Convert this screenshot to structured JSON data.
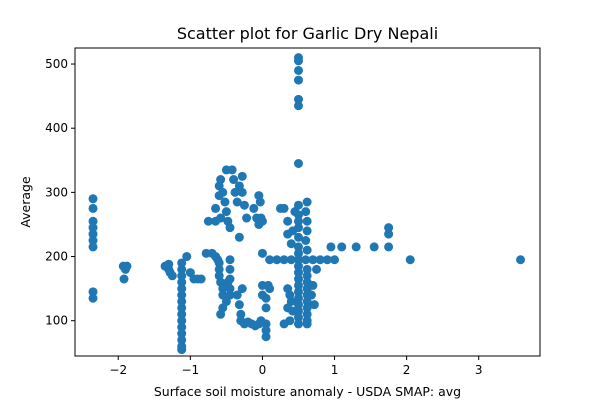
{
  "chart_data": {
    "type": "scatter",
    "title": "Scatter plot for Garlic Dry Nepali",
    "xlabel": "Surface soil moisture anomaly  - USDA SMAP: avg",
    "ylabel": "Average",
    "xlim": [
      -2.6,
      3.85
    ],
    "ylim": [
      45,
      525
    ],
    "xticks": [
      -2,
      -1,
      0,
      1,
      2,
      3
    ],
    "yticks": [
      100,
      200,
      300,
      400,
      500
    ],
    "xtick_labels": [
      "−2",
      "−1",
      "0",
      "1",
      "2",
      "3"
    ],
    "ytick_labels": [
      "100",
      "200",
      "300",
      "400",
      "500"
    ],
    "grid": false,
    "legend": "none",
    "marker_color": "#1f77b4",
    "points": [
      {
        "x": -2.35,
        "y": 290
      },
      {
        "x": -2.35,
        "y": 275
      },
      {
        "x": -2.35,
        "y": 255
      },
      {
        "x": -2.35,
        "y": 245
      },
      {
        "x": -2.35,
        "y": 235
      },
      {
        "x": -2.35,
        "y": 225
      },
      {
        "x": -2.35,
        "y": 215
      },
      {
        "x": -2.35,
        "y": 145
      },
      {
        "x": -2.35,
        "y": 135
      },
      {
        "x": -1.93,
        "y": 185
      },
      {
        "x": -1.9,
        "y": 180
      },
      {
        "x": -1.92,
        "y": 165
      },
      {
        "x": -1.88,
        "y": 185
      },
      {
        "x": -1.35,
        "y": 185
      },
      {
        "x": -1.3,
        "y": 180
      },
      {
        "x": -1.28,
        "y": 175
      },
      {
        "x": -1.25,
        "y": 170
      },
      {
        "x": -1.3,
        "y": 188
      },
      {
        "x": -1.12,
        "y": 190
      },
      {
        "x": -1.12,
        "y": 180
      },
      {
        "x": -1.12,
        "y": 170
      },
      {
        "x": -1.12,
        "y": 160
      },
      {
        "x": -1.12,
        "y": 150
      },
      {
        "x": -1.12,
        "y": 140
      },
      {
        "x": -1.12,
        "y": 130
      },
      {
        "x": -1.12,
        "y": 120
      },
      {
        "x": -1.12,
        "y": 110
      },
      {
        "x": -1.12,
        "y": 100
      },
      {
        "x": -1.12,
        "y": 90
      },
      {
        "x": -1.12,
        "y": 80
      },
      {
        "x": -1.12,
        "y": 70
      },
      {
        "x": -1.12,
        "y": 60
      },
      {
        "x": -1.12,
        "y": 55
      },
      {
        "x": -1.05,
        "y": 200
      },
      {
        "x": -1.0,
        "y": 175
      },
      {
        "x": -0.95,
        "y": 165
      },
      {
        "x": -0.9,
        "y": 165
      },
      {
        "x": -0.85,
        "y": 165
      },
      {
        "x": -0.78,
        "y": 205
      },
      {
        "x": -0.7,
        "y": 205
      },
      {
        "x": -0.65,
        "y": 200
      },
      {
        "x": -0.62,
        "y": 195
      },
      {
        "x": -0.6,
        "y": 190
      },
      {
        "x": -0.6,
        "y": 180
      },
      {
        "x": -0.6,
        "y": 170
      },
      {
        "x": -0.58,
        "y": 160
      },
      {
        "x": -0.55,
        "y": 150
      },
      {
        "x": -0.55,
        "y": 140
      },
      {
        "x": -0.5,
        "y": 130
      },
      {
        "x": -0.55,
        "y": 120
      },
      {
        "x": -0.58,
        "y": 110
      },
      {
        "x": -0.75,
        "y": 255
      },
      {
        "x": -0.65,
        "y": 275
      },
      {
        "x": -0.6,
        "y": 295
      },
      {
        "x": -0.6,
        "y": 310
      },
      {
        "x": -0.58,
        "y": 320
      },
      {
        "x": -0.55,
        "y": 300
      },
      {
        "x": -0.52,
        "y": 285
      },
      {
        "x": -0.5,
        "y": 270
      },
      {
        "x": -0.48,
        "y": 255
      },
      {
        "x": -0.5,
        "y": 335
      },
      {
        "x": -0.42,
        "y": 335
      },
      {
        "x": -0.4,
        "y": 320
      },
      {
        "x": -0.38,
        "y": 300
      },
      {
        "x": -0.35,
        "y": 285
      },
      {
        "x": -0.32,
        "y": 310
      },
      {
        "x": -0.28,
        "y": 325
      },
      {
        "x": -0.28,
        "y": 300
      },
      {
        "x": -0.25,
        "y": 280
      },
      {
        "x": -0.22,
        "y": 260
      },
      {
        "x": -0.65,
        "y": 255
      },
      {
        "x": -0.58,
        "y": 260
      },
      {
        "x": -0.45,
        "y": 245
      },
      {
        "x": -0.32,
        "y": 230
      },
      {
        "x": -0.45,
        "y": 195
      },
      {
        "x": -0.45,
        "y": 180
      },
      {
        "x": -0.45,
        "y": 165
      },
      {
        "x": -0.45,
        "y": 150
      },
      {
        "x": -0.45,
        "y": 140
      },
      {
        "x": -0.48,
        "y": 160
      },
      {
        "x": -0.35,
        "y": 140
      },
      {
        "x": -0.32,
        "y": 125
      },
      {
        "x": -0.3,
        "y": 110
      },
      {
        "x": -0.3,
        "y": 100
      },
      {
        "x": -0.25,
        "y": 95
      },
      {
        "x": -0.2,
        "y": 98
      },
      {
        "x": -0.15,
        "y": 95
      },
      {
        "x": -0.1,
        "y": 92
      },
      {
        "x": -0.05,
        "y": 95
      },
      {
        "x": -0.02,
        "y": 100
      },
      {
        "x": 0.05,
        "y": 95
      },
      {
        "x": 0.05,
        "y": 85
      },
      {
        "x": 0.05,
        "y": 75
      },
      {
        "x": -0.28,
        "y": 150
      },
      {
        "x": -0.12,
        "y": 275
      },
      {
        "x": -0.08,
        "y": 260
      },
      {
        "x": -0.05,
        "y": 250
      },
      {
        "x": -0.05,
        "y": 295
      },
      {
        "x": -0.03,
        "y": 285
      },
      {
        "x": -0.02,
        "y": 260
      },
      {
        "x": 0.0,
        "y": 255
      },
      {
        "x": 0.0,
        "y": 205
      },
      {
        "x": 0.0,
        "y": 155
      },
      {
        "x": 0.0,
        "y": 140
      },
      {
        "x": 0.05,
        "y": 135
      },
      {
        "x": 0.05,
        "y": 120
      },
      {
        "x": 0.08,
        "y": 155
      },
      {
        "x": 0.1,
        "y": 150
      },
      {
        "x": 0.25,
        "y": 275
      },
      {
        "x": 0.3,
        "y": 275
      },
      {
        "x": 0.35,
        "y": 255
      },
      {
        "x": 0.35,
        "y": 235
      },
      {
        "x": 0.4,
        "y": 220
      },
      {
        "x": 0.42,
        "y": 240
      },
      {
        "x": 0.45,
        "y": 270
      },
      {
        "x": 0.5,
        "y": 510
      },
      {
        "x": 0.5,
        "y": 505
      },
      {
        "x": 0.5,
        "y": 490
      },
      {
        "x": 0.5,
        "y": 475
      },
      {
        "x": 0.5,
        "y": 445
      },
      {
        "x": 0.5,
        "y": 435
      },
      {
        "x": 0.5,
        "y": 345
      },
      {
        "x": 0.5,
        "y": 280
      },
      {
        "x": 0.5,
        "y": 265
      },
      {
        "x": 0.5,
        "y": 255
      },
      {
        "x": 0.5,
        "y": 245
      },
      {
        "x": 0.5,
        "y": 230
      },
      {
        "x": 0.5,
        "y": 215
      },
      {
        "x": 0.5,
        "y": 205
      },
      {
        "x": 0.5,
        "y": 195
      },
      {
        "x": 0.5,
        "y": 185
      },
      {
        "x": 0.5,
        "y": 175
      },
      {
        "x": 0.5,
        "y": 165
      },
      {
        "x": 0.5,
        "y": 155
      },
      {
        "x": 0.5,
        "y": 145
      },
      {
        "x": 0.5,
        "y": 135
      },
      {
        "x": 0.5,
        "y": 125
      },
      {
        "x": 0.5,
        "y": 115
      },
      {
        "x": 0.5,
        "y": 105
      },
      {
        "x": 0.5,
        "y": 95
      },
      {
        "x": 0.35,
        "y": 150
      },
      {
        "x": 0.38,
        "y": 140
      },
      {
        "x": 0.4,
        "y": 130
      },
      {
        "x": 0.35,
        "y": 120
      },
      {
        "x": 0.42,
        "y": 115
      },
      {
        "x": 0.3,
        "y": 95
      },
      {
        "x": 0.38,
        "y": 100
      },
      {
        "x": 0.62,
        "y": 285
      },
      {
        "x": 0.6,
        "y": 270
      },
      {
        "x": 0.62,
        "y": 255
      },
      {
        "x": 0.62,
        "y": 240
      },
      {
        "x": 0.6,
        "y": 225
      },
      {
        "x": 0.62,
        "y": 210
      },
      {
        "x": 0.62,
        "y": 180
      },
      {
        "x": 0.62,
        "y": 170
      },
      {
        "x": 0.62,
        "y": 160
      },
      {
        "x": 0.62,
        "y": 150
      },
      {
        "x": 0.62,
        "y": 140
      },
      {
        "x": 0.62,
        "y": 130
      },
      {
        "x": 0.62,
        "y": 120
      },
      {
        "x": 0.62,
        "y": 110
      },
      {
        "x": 0.62,
        "y": 100
      },
      {
        "x": 0.62,
        "y": 95
      },
      {
        "x": 0.7,
        "y": 155
      },
      {
        "x": 0.68,
        "y": 140
      },
      {
        "x": 0.72,
        "y": 125
      },
      {
        "x": 0.1,
        "y": 195
      },
      {
        "x": 0.2,
        "y": 195
      },
      {
        "x": 0.3,
        "y": 195
      },
      {
        "x": 0.4,
        "y": 195
      },
      {
        "x": 0.6,
        "y": 195
      },
      {
        "x": 0.7,
        "y": 195
      },
      {
        "x": 0.8,
        "y": 195
      },
      {
        "x": 0.9,
        "y": 195
      },
      {
        "x": 1.0,
        "y": 195
      },
      {
        "x": 0.75,
        "y": 180
      },
      {
        "x": 0.95,
        "y": 215
      },
      {
        "x": 1.1,
        "y": 215
      },
      {
        "x": 1.3,
        "y": 215
      },
      {
        "x": 1.55,
        "y": 215
      },
      {
        "x": 1.75,
        "y": 245
      },
      {
        "x": 1.75,
        "y": 235
      },
      {
        "x": 1.75,
        "y": 215
      },
      {
        "x": 2.05,
        "y": 195
      },
      {
        "x": 3.58,
        "y": 195
      }
    ]
  }
}
